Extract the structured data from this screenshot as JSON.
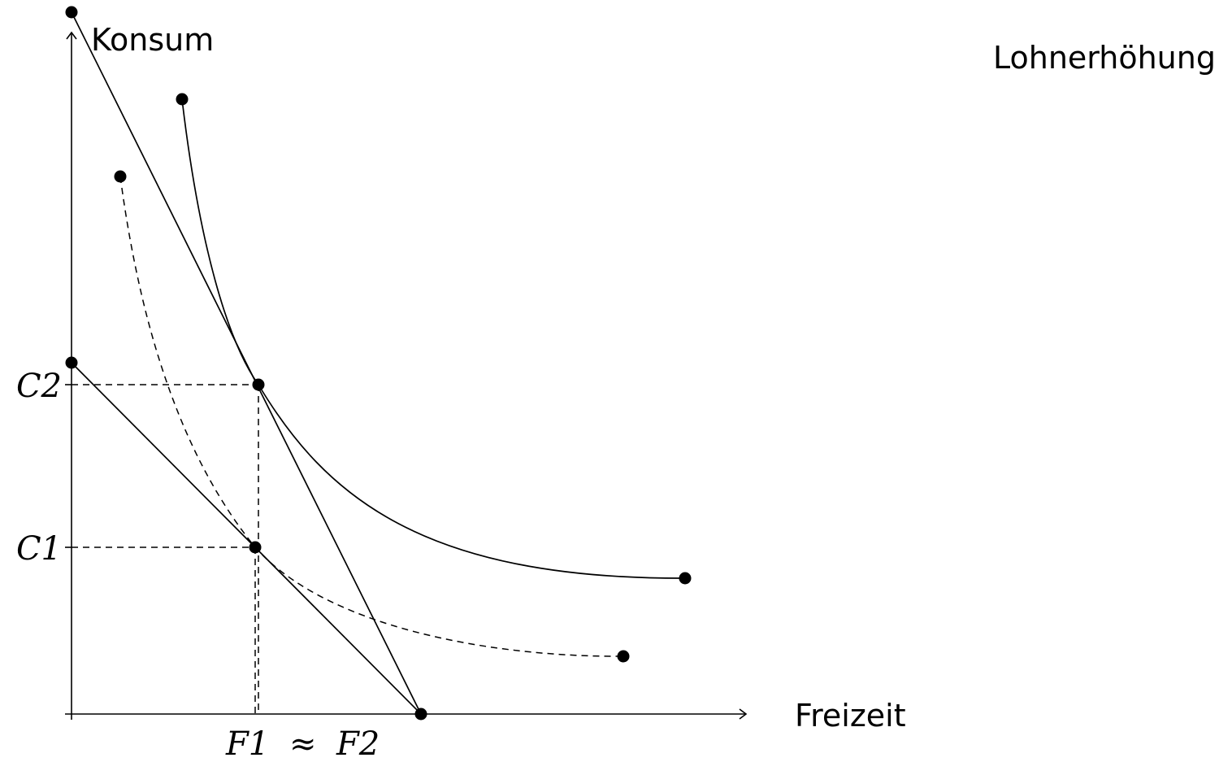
{
  "title": "Lohnerhöhung",
  "axes": {
    "x_label": "Freizeit",
    "y_label": "Konsum"
  },
  "labels": {
    "c1": "C1",
    "c2": "C2",
    "f1": "F1",
    "approx": "≈",
    "f2": "F2"
  },
  "colors": {
    "ink": "#000000",
    "background": "#ffffff"
  }
}
